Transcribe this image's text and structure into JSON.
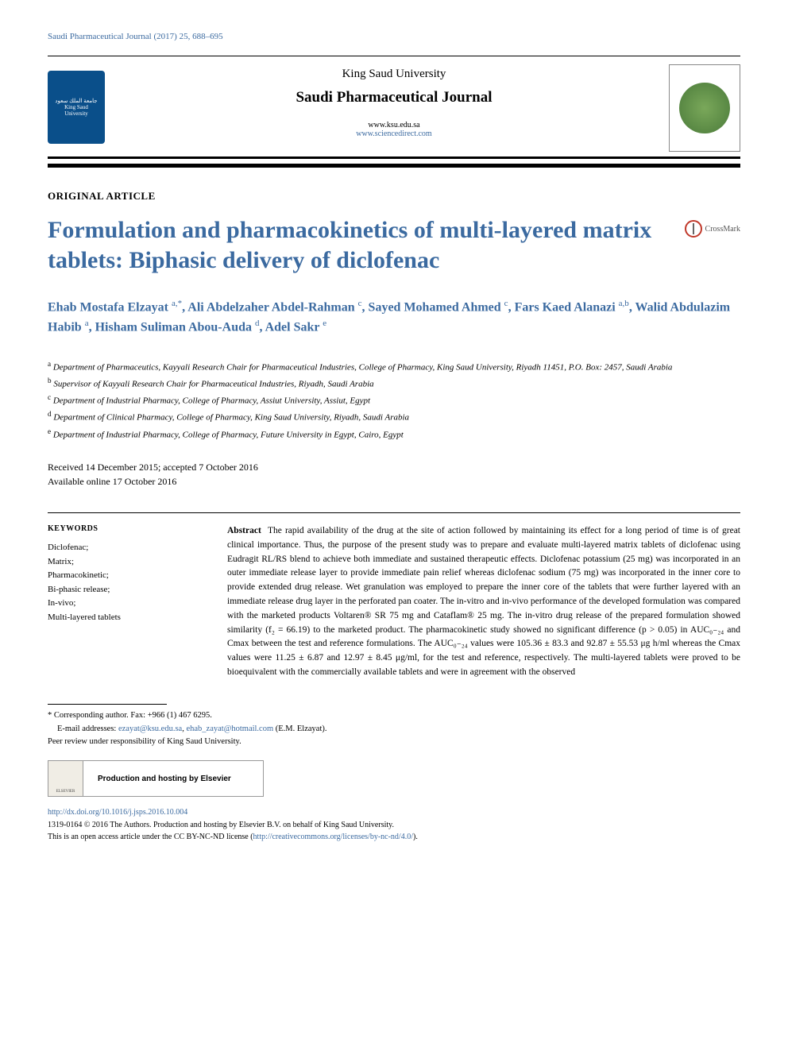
{
  "runningHead": "Saudi Pharmaceutical Journal (2017) 25, 688–695",
  "header": {
    "logoText": "جامعة الملك سعود King Saud University",
    "university": "King Saud University",
    "journal": "Saudi Pharmaceutical Journal",
    "url1": "www.ksu.edu.sa",
    "url2": "www.sciencedirect.com"
  },
  "articleType": "ORIGINAL ARTICLE",
  "title": "Formulation and pharmacokinetics of multi-layered matrix tablets: Biphasic delivery of diclofenac",
  "crossmark": "CrossMark",
  "authorsHtml": "Ehab Mostafa Elzayat <sup>a,*</sup>, Ali Abdelzaher Abdel-Rahman <sup>c</sup>, Sayed Mohamed Ahmed <sup>c</sup>, Fars Kaed Alanazi <sup>a,b</sup>, Walid Abdulazim Habib <sup>a</sup>, Hisham Suliman Abou-Auda <sup>d</sup>, Adel Sakr <sup>e</sup>",
  "affiliations": [
    {
      "sup": "a",
      "text": "Department of Pharmaceutics, Kayyali Research Chair for Pharmaceutical Industries, College of Pharmacy, King Saud University, Riyadh 11451, P.O. Box: 2457, Saudi Arabia"
    },
    {
      "sup": "b",
      "text": "Supervisor of Kayyali Research Chair for Pharmaceutical Industries, Riyadh, Saudi Arabia"
    },
    {
      "sup": "c",
      "text": "Department of Industrial Pharmacy, College of Pharmacy, Assiut University, Assiut, Egypt"
    },
    {
      "sup": "d",
      "text": "Department of Clinical Pharmacy, College of Pharmacy, King Saud University, Riyadh, Saudi Arabia"
    },
    {
      "sup": "e",
      "text": "Department of Industrial Pharmacy, College of Pharmacy, Future University in Egypt, Cairo, Egypt"
    }
  ],
  "dates": {
    "received": "Received 14 December 2015; accepted 7 October 2016",
    "online": "Available online 17 October 2016"
  },
  "keywordsHead": "KEYWORDS",
  "keywords": [
    "Diclofenac;",
    "Matrix;",
    "Pharmacokinetic;",
    "Bi-phasic release;",
    "In-vivo;",
    "Multi-layered tablets"
  ],
  "abstractLabel": "Abstract",
  "abstractText": "The rapid availability of the drug at the site of action followed by maintaining its effect for a long period of time is of great clinical importance. Thus, the purpose of the present study was to prepare and evaluate multi-layered matrix tablets of diclofenac using Eudragit RL/RS blend to achieve both immediate and sustained therapeutic effects. Diclofenac potassium (25 mg) was incorporated in an outer immediate release layer to provide immediate pain relief whereas diclofenac sodium (75 mg) was incorporated in the inner core to provide extended drug release. Wet granulation was employed to prepare the inner core of the tablets that were further layered with an immediate release drug layer in the perforated pan coater. The in-vitro and in-vivo performance of the developed formulation was compared with the marketed products Voltaren® SR 75 mg and Cataflam® 25 mg. The in-vitro drug release of the prepared formulation showed similarity (f₂ = 66.19) to the marketed product. The pharmacokinetic study showed no significant difference (p > 0.05) in AUC₀₋₂₄ and Cmax between the test and reference formulations. The AUC₀₋₂₄ values were 105.36 ± 83.3 and 92.87 ± 55.53 μg h/ml whereas the Cmax values were 11.25 ± 6.87 and 12.97 ± 8.45 μg/ml, for the test and reference, respectively. The multi-layered tablets were proved to be bioequivalent with the commercially available tablets and were in agreement with the observed",
  "footnotes": {
    "corr": "* Corresponding author. Fax: +966 (1) 467 6295.",
    "emailLabel": "E-mail addresses: ",
    "email1": "ezayat@ksu.edu.sa",
    "emailSep": ", ",
    "email2": "ehab_zayat@hotmail.com",
    "emailTail": " (E.M. Elzayat).",
    "peer": "Peer review under responsibility of King Saud University."
  },
  "elsevier": {
    "logo": "ELSEVIER",
    "text": "Production and hosting by Elsevier"
  },
  "doi": "http://dx.doi.org/10.1016/j.jsps.2016.10.004",
  "copyright": {
    "line1a": "1319-0164 © 2016 The Authors. Production and hosting by Elsevier B.V. on behalf of King Saud University.",
    "line2a": "This is an open access article under the CC BY-NC-ND license (",
    "line2link": "http://creativecommons.org/licenses/by-nc-nd/4.0/",
    "line2b": ")."
  },
  "colors": {
    "link": "#3b6aa0",
    "ksuBlue": "#0a4f8a",
    "crossmarkRed": "#c0392b"
  }
}
